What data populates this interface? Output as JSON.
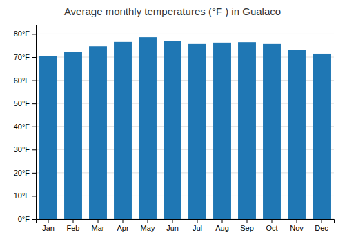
{
  "chart_data": {
    "type": "bar",
    "title": "Average monthly temperatures (°F ) in Gualaco",
    "categories": [
      "Jan",
      "Feb",
      "Mar",
      "Apr",
      "May",
      "Jun",
      "Jul",
      "Aug",
      "Sep",
      "Oct",
      "Nov",
      "Dec"
    ],
    "values": [
      70.3,
      72.1,
      74.7,
      76.6,
      78.6,
      77.0,
      75.7,
      76.3,
      76.5,
      75.7,
      73.2,
      71.5
    ],
    "ylim": [
      0,
      84
    ],
    "yticks": [
      {
        "value": 0,
        "label": "0°F"
      },
      {
        "value": 10,
        "label": "10°F"
      },
      {
        "value": 20,
        "label": "20°F"
      },
      {
        "value": 30,
        "label": "30°F"
      },
      {
        "value": 40,
        "label": "40°F"
      },
      {
        "value": 50,
        "label": "50°F"
      },
      {
        "value": 60,
        "label": "60°F"
      },
      {
        "value": 70,
        "label": "70°F"
      },
      {
        "value": 80,
        "label": "80°F"
      }
    ],
    "grid": true
  }
}
